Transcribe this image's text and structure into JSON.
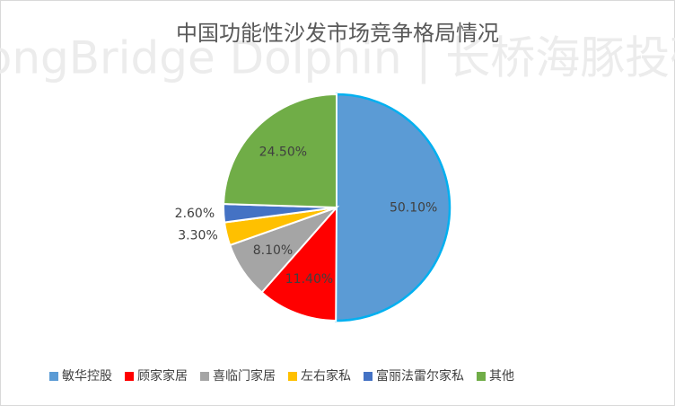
{
  "chart_data": {
    "type": "pie",
    "title": "中国功能性沙发市场竞争格局情况",
    "watermark": "LongBridge Dolphin | 长桥海豚投研",
    "categories": [
      "敏华控股",
      "顾家家居",
      "喜临门家居",
      "左右家私",
      "富丽法雷尔家私",
      "其他"
    ],
    "values": [
      50.1,
      11.4,
      8.1,
      3.3,
      2.6,
      24.5
    ],
    "value_labels": [
      "50.10%",
      "11.40%",
      "8.10%",
      "3.30%",
      "2.60%",
      "24.50%"
    ],
    "colors": [
      "#5b9bd5",
      "#ff0000",
      "#a5a5a5",
      "#ffc000",
      "#4472c4",
      "#70ad47"
    ],
    "legend": "bottom"
  }
}
